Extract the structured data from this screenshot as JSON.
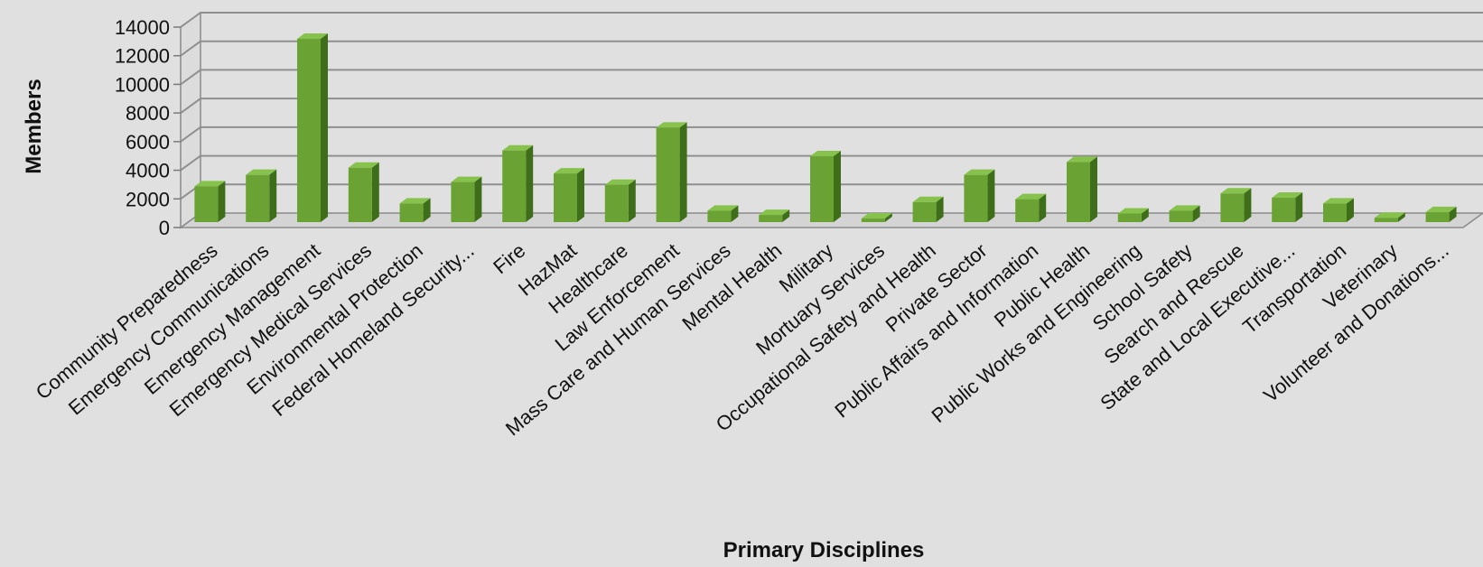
{
  "chart_data": {
    "type": "bar",
    "title": "",
    "xlabel": "Primary Disciplines",
    "ylabel": "Members",
    "ylim": [
      0,
      14000
    ],
    "yticks": [
      0,
      2000,
      4000,
      6000,
      8000,
      10000,
      12000,
      14000
    ],
    "grid": true,
    "bar_color": "#6aa334",
    "categories": [
      "Community Preparedness",
      "Emergency Communications",
      "Emergency Management",
      "Emergency Medical Services",
      "Environmental Protection",
      "Federal Homeland Security...",
      "Fire",
      "HazMat",
      "Healthcare",
      "Law Enforcement",
      "Mass Care and Human Services",
      "Mental Health",
      "Military",
      "Mortuary Services",
      "Occupational Safety and Health",
      "Private Sector",
      "Public Affairs and Information",
      "Public Health",
      "Public Works and Engineering",
      "School Safety",
      "Search and Rescue",
      "State and Local Executive...",
      "Transportation",
      "Veterinary",
      "Volunteer and Donations..."
    ],
    "values": [
      2500,
      3300,
      12800,
      3800,
      1300,
      2800,
      5000,
      3400,
      2600,
      6600,
      800,
      500,
      4600,
      250,
      1400,
      3300,
      1600,
      4200,
      600,
      800,
      2000,
      1700,
      1300,
      300,
      700
    ]
  }
}
